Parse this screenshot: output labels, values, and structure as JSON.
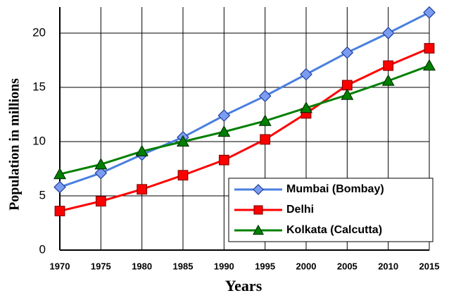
{
  "chart_data": {
    "type": "line",
    "xlabel": "Years",
    "ylabel": "Population in millions",
    "x": [
      1970,
      1975,
      1980,
      1985,
      1990,
      1995,
      2000,
      2005,
      2010,
      2015
    ],
    "xlim": [
      1970,
      2015
    ],
    "xticks": [
      1970,
      1975,
      1980,
      1985,
      1990,
      1995,
      2000,
      2005,
      2010,
      2015
    ],
    "ylim": [
      0,
      22.4
    ],
    "yticks": [
      0,
      5,
      10,
      15,
      20
    ],
    "grid": true,
    "legend": "lower right",
    "series": [
      {
        "name": "Mumbai (Bombay)",
        "color": "#4a7fe0",
        "marker": "diamond",
        "values": [
          5.8,
          7.1,
          8.8,
          10.4,
          12.4,
          14.2,
          16.2,
          18.2,
          20.0,
          21.9
        ]
      },
      {
        "name": "Delhi",
        "color": "#ff0000",
        "marker": "square",
        "values": [
          3.6,
          4.5,
          5.6,
          6.9,
          8.3,
          10.2,
          12.6,
          15.2,
          17.0,
          18.6
        ]
      },
      {
        "name": "Kolkata (Calcutta)",
        "color": "#008000",
        "marker": "triangle",
        "values": [
          7.0,
          7.9,
          9.1,
          10.0,
          10.9,
          11.9,
          13.1,
          14.3,
          15.6,
          17.0
        ]
      }
    ]
  }
}
